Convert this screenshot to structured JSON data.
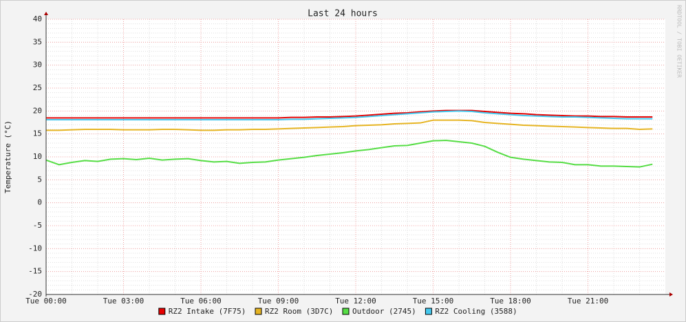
{
  "chart_data": {
    "type": "line",
    "title": "Last 24 hours",
    "y_label": "Temperature (°C)",
    "watermark": "RRDTOOL / TOBI OETIKER",
    "x": [
      "Tue 00:00",
      "Tue 00:30",
      "Tue 01:00",
      "Tue 01:30",
      "Tue 02:00",
      "Tue 02:30",
      "Tue 03:00",
      "Tue 03:30",
      "Tue 04:00",
      "Tue 04:30",
      "Tue 05:00",
      "Tue 05:30",
      "Tue 06:00",
      "Tue 06:30",
      "Tue 07:00",
      "Tue 07:30",
      "Tue 08:00",
      "Tue 08:30",
      "Tue 09:00",
      "Tue 09:30",
      "Tue 10:00",
      "Tue 10:30",
      "Tue 11:00",
      "Tue 11:30",
      "Tue 12:00",
      "Tue 12:30",
      "Tue 13:00",
      "Tue 13:30",
      "Tue 14:00",
      "Tue 14:30",
      "Tue 15:00",
      "Tue 15:30",
      "Tue 16:00",
      "Tue 16:30",
      "Tue 17:00",
      "Tue 17:30",
      "Tue 18:00",
      "Tue 18:30",
      "Tue 19:00",
      "Tue 19:30",
      "Tue 20:00",
      "Tue 20:30",
      "Tue 21:00",
      "Tue 21:30",
      "Tue 22:00",
      "Tue 22:30",
      "Tue 23:00",
      "Tue 23:30"
    ],
    "xlim": [
      "Tue 00:00",
      "Wed 00:00"
    ],
    "xticks": [
      "Tue 00:00",
      "Tue 03:00",
      "Tue 06:00",
      "Tue 09:00",
      "Tue 12:00",
      "Tue 15:00",
      "Tue 18:00",
      "Tue 21:00"
    ],
    "ylim": [
      -20,
      40
    ],
    "yticks": [
      -20,
      -15,
      -10,
      -5,
      0,
      5,
      10,
      15,
      20,
      25,
      30,
      35,
      40
    ],
    "grid": true,
    "series": [
      {
        "name": "RZ2 Intake (7F75)",
        "color": "#e60000",
        "values": [
          18.5,
          18.5,
          18.5,
          18.5,
          18.5,
          18.5,
          18.5,
          18.5,
          18.5,
          18.5,
          18.5,
          18.5,
          18.5,
          18.5,
          18.5,
          18.5,
          18.5,
          18.5,
          18.5,
          18.6,
          18.6,
          18.7,
          18.7,
          18.8,
          18.9,
          19.1,
          19.3,
          19.5,
          19.6,
          19.8,
          20.0,
          20.1,
          20.1,
          20.1,
          19.9,
          19.7,
          19.5,
          19.4,
          19.2,
          19.1,
          19.0,
          18.9,
          18.9,
          18.8,
          18.8,
          18.7,
          18.7,
          18.7
        ]
      },
      {
        "name": "RZ2 Room (3D7C)",
        "color": "#e6b422",
        "values": [
          15.8,
          15.8,
          15.9,
          16.0,
          16.0,
          16.0,
          15.9,
          15.9,
          15.9,
          16.0,
          16.0,
          15.9,
          15.8,
          15.8,
          15.9,
          15.9,
          16.0,
          16.0,
          16.1,
          16.2,
          16.3,
          16.4,
          16.5,
          16.6,
          16.8,
          16.9,
          17.0,
          17.2,
          17.3,
          17.4,
          18.0,
          18.0,
          18.0,
          17.9,
          17.5,
          17.3,
          17.1,
          16.9,
          16.8,
          16.7,
          16.6,
          16.5,
          16.4,
          16.3,
          16.2,
          16.2,
          16.0,
          16.1
        ]
      },
      {
        "name": "Outdoor (2745)",
        "color": "#55dd44",
        "values": [
          9.3,
          8.3,
          8.8,
          9.2,
          9.0,
          9.5,
          9.6,
          9.4,
          9.7,
          9.3,
          9.5,
          9.6,
          9.2,
          8.9,
          9.0,
          8.6,
          8.8,
          8.9,
          9.3,
          9.6,
          9.9,
          10.3,
          10.6,
          10.9,
          11.3,
          11.6,
          12.0,
          12.4,
          12.5,
          13.0,
          13.5,
          13.6,
          13.3,
          13.0,
          12.3,
          11.0,
          9.9,
          9.5,
          9.2,
          8.9,
          8.8,
          8.3,
          8.3,
          8.0,
          8.0,
          7.9,
          7.8,
          8.4
        ]
      },
      {
        "name": "RZ2 Cooling (3588)",
        "color": "#44c8ee",
        "values": [
          18.1,
          18.1,
          18.1,
          18.1,
          18.1,
          18.1,
          18.1,
          18.1,
          18.1,
          18.1,
          18.1,
          18.1,
          18.1,
          18.1,
          18.1,
          18.1,
          18.1,
          18.1,
          18.1,
          18.2,
          18.2,
          18.3,
          18.4,
          18.5,
          18.6,
          18.8,
          19.0,
          19.2,
          19.4,
          19.6,
          19.8,
          19.9,
          20.0,
          19.9,
          19.6,
          19.4,
          19.2,
          19.0,
          18.9,
          18.8,
          18.7,
          18.7,
          18.6,
          18.5,
          18.4,
          18.3,
          18.3,
          18.3
        ]
      }
    ]
  }
}
